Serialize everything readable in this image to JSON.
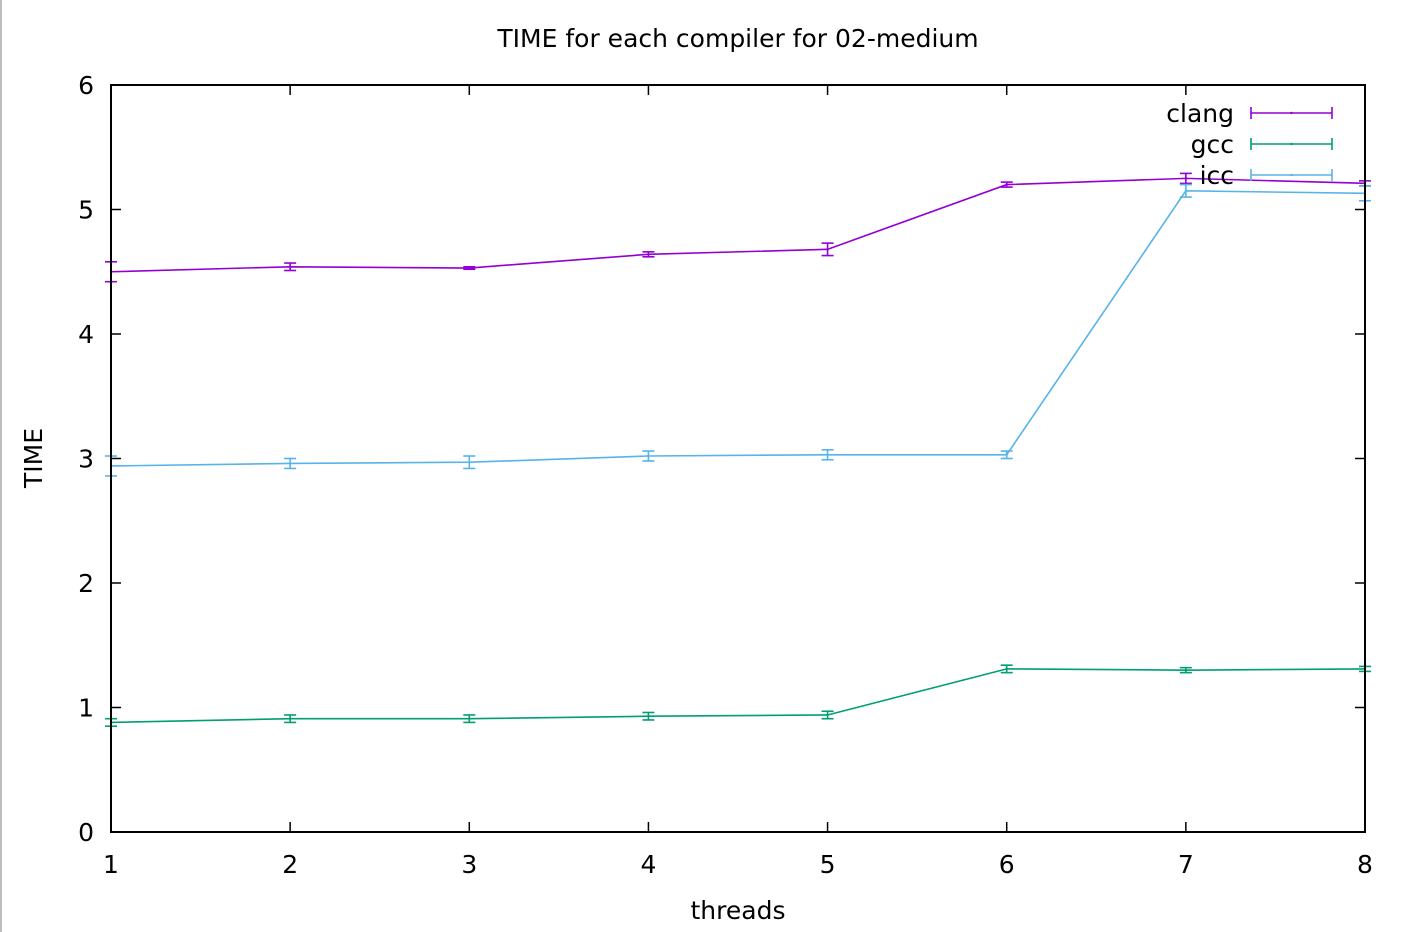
{
  "chart_data": {
    "type": "line",
    "title": "TIME for each compiler for 02-medium",
    "xlabel": "threads",
    "ylabel": "TIME",
    "x": [
      1,
      2,
      3,
      4,
      5,
      6,
      7,
      8
    ],
    "xlim": [
      1,
      8
    ],
    "ylim": [
      0,
      6
    ],
    "xticks": [
      "1",
      "2",
      "3",
      "4",
      "5",
      "6",
      "7",
      "8"
    ],
    "yticks": [
      "0",
      "1",
      "2",
      "3",
      "4",
      "5",
      "6"
    ],
    "grid": false,
    "legend_position": "top-right",
    "series": [
      {
        "name": "clang",
        "color": "#9400d3",
        "values": [
          4.5,
          4.54,
          4.53,
          4.64,
          4.68,
          5.2,
          5.25,
          5.21
        ],
        "errors": [
          0.08,
          0.03,
          0.01,
          0.02,
          0.05,
          0.02,
          0.04,
          0.02
        ]
      },
      {
        "name": "gcc",
        "color": "#009e73",
        "values": [
          0.88,
          0.91,
          0.91,
          0.93,
          0.94,
          1.31,
          1.3,
          1.31
        ],
        "errors": [
          0.03,
          0.03,
          0.03,
          0.03,
          0.03,
          0.03,
          0.02,
          0.02
        ]
      },
      {
        "name": "icc",
        "color": "#56b4e9",
        "values": [
          2.94,
          2.96,
          2.97,
          3.02,
          3.03,
          3.03,
          5.15,
          5.13
        ],
        "errors": [
          0.08,
          0.04,
          0.05,
          0.04,
          0.04,
          0.03,
          0.05,
          0.06
        ]
      }
    ]
  }
}
